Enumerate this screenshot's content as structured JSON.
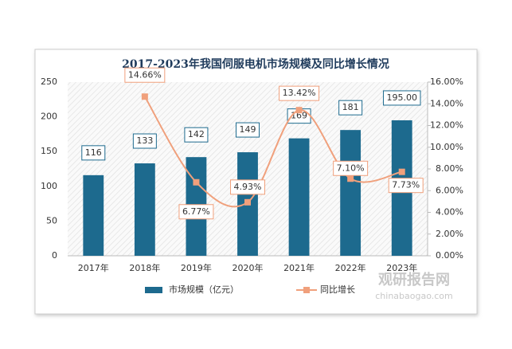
{
  "chart_data": {
    "type": "bar-line",
    "title": "2017-2023年我国伺服电机市场规模及同比增长情况",
    "categories": [
      "2017年",
      "2018年",
      "2019年",
      "2020年",
      "2021年",
      "2022年",
      "2023年"
    ],
    "series": [
      {
        "name": "市场规模（亿元）",
        "type": "bar",
        "color": "#1d6a8e",
        "values": [
          116,
          133,
          142,
          149,
          169,
          181,
          195
        ],
        "value_labels": [
          "116",
          "133",
          "142",
          "149",
          "169",
          "181",
          "195.00"
        ]
      },
      {
        "name": "同比增长",
        "type": "line",
        "axis": "y2",
        "color": "#f0a07c",
        "values": [
          null,
          14.66,
          6.77,
          4.93,
          13.42,
          7.1,
          7.73
        ],
        "value_labels": [
          null,
          "14.66%",
          "6.77%",
          "4.93%",
          "13.42%",
          "7.10%",
          "7.73%"
        ]
      }
    ],
    "ylim": [
      0,
      250
    ],
    "yticks": [
      0,
      50,
      100,
      150,
      200,
      250
    ],
    "y2lim": [
      0,
      16
    ],
    "y2ticks": [
      {
        "value": 0,
        "label": "0.00%"
      },
      {
        "value": 2,
        "label": "2.00%"
      },
      {
        "value": 4,
        "label": "4.00%"
      },
      {
        "value": 6,
        "label": "6.00%"
      },
      {
        "value": 8,
        "label": "8.00%"
      },
      {
        "value": 10,
        "label": "10.00%"
      },
      {
        "value": 12,
        "label": "12.00%"
      },
      {
        "value": 14,
        "label": "14.00%"
      },
      {
        "value": 16,
        "label": "16.00%"
      }
    ],
    "legend": "bottom",
    "watermark": "观研报告网",
    "watermark_url": "chinabaogao.com"
  }
}
